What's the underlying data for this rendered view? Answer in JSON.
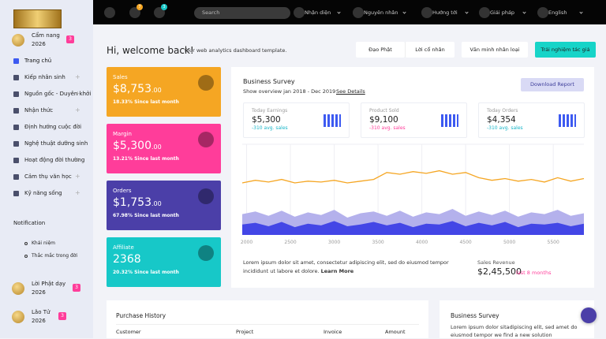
{
  "sidebar": {
    "profile": {
      "title": "Cẩm nang",
      "year": "2026",
      "badge": "3"
    },
    "menu": [
      "Trang chủ",
      "Kiếp nhân sinh",
      "Nguồn gốc - Duyên khởi",
      "Nhận thức",
      "Định hướng cuộc đời",
      "Nghệ thuật dưỡng sinh",
      "Hoạt động đời thường",
      "Cảm thụ văn học",
      "Kỹ năng sống"
    ],
    "notification_title": "Notification",
    "notifications": [
      "Khái niệm",
      "Thắc mắc trong đời"
    ],
    "posts": [
      {
        "title": "Lời Phật dạy",
        "year": "2026",
        "badge": "3"
      },
      {
        "title": "Lão Tử",
        "year": "2026",
        "badge": "3"
      }
    ]
  },
  "topbar": {
    "badges": [
      "7",
      "3"
    ],
    "search_placeholder": "Search",
    "menu": [
      "Nhận diện",
      "Nguyên nhân",
      "Hướng tới",
      "Giải pháp",
      "English"
    ]
  },
  "header": {
    "title": "Hi, welcome back!",
    "subtitle": "Your web analytics dashboard template.",
    "buttons": [
      "Đạo Phật",
      "Lời cổ nhân",
      "Văn minh nhân loại",
      "Trải nghiệm tác giả"
    ]
  },
  "cards": [
    {
      "label": "Sales",
      "value": "$8,753",
      "cents": ".00",
      "change": "18.33% Since last month"
    },
    {
      "label": "Margin",
      "value": "$5,300",
      "cents": ".00",
      "change": "13.21% Since last month"
    },
    {
      "label": "Orders",
      "value": "$1,753",
      "cents": ".00",
      "change": "67.98% Since last month"
    },
    {
      "label": "Affiliate",
      "value": "2368",
      "change": "20.32% Since last month"
    }
  ],
  "survey": {
    "title": "Business Survey",
    "subtitle": "Show overview jan 2018 - Dec 2019",
    "link": "See Details",
    "button": "Download Report",
    "stats": [
      {
        "label": "Today Earnings",
        "value": "$5,300",
        "note": "-310 avg. sales"
      },
      {
        "label": "Product Sold",
        "value": "$9,100",
        "note": "-310 avg. sales"
      },
      {
        "label": "Today Orders",
        "value": "$4,354",
        "note": "-310 avg. sales"
      }
    ],
    "chart": {
      "type": "line",
      "x": [
        1950,
        2100,
        2250,
        2400,
        2550,
        2700,
        2850,
        3000,
        3150,
        3300,
        3450,
        3600,
        3750,
        3900,
        4050,
        4200,
        4350,
        4500,
        4650,
        4800,
        4950,
        5100,
        5250,
        5400,
        5550,
        5700,
        5850
      ],
      "xlim": [
        1950,
        5850
      ],
      "xticks": [
        2000,
        2500,
        3000,
        3500,
        4000,
        4500,
        5000,
        5500
      ],
      "ylim": [
        0,
        100
      ],
      "grid": true,
      "series": [
        {
          "type": "area",
          "color": "#b4b1ec",
          "values": [
            24,
            27,
            22,
            28,
            21,
            26,
            23,
            29,
            20,
            25,
            27,
            22,
            28,
            21,
            26,
            24,
            30,
            22,
            27,
            23,
            28,
            21,
            26,
            24,
            29,
            22,
            25
          ]
        },
        {
          "type": "area",
          "color": "#4346e6",
          "values": [
            12,
            14,
            10,
            15,
            9,
            13,
            11,
            16,
            10,
            12,
            15,
            11,
            14,
            9,
            13,
            12,
            16,
            10,
            14,
            11,
            15,
            9,
            13,
            12,
            14,
            10,
            13
          ]
        },
        {
          "type": "line",
          "color": "#f5a623",
          "values": [
            60,
            63,
            61,
            64,
            60,
            62,
            61,
            63,
            60,
            62,
            64,
            72,
            70,
            73,
            71,
            74,
            70,
            72,
            66,
            63,
            65,
            62,
            64,
            61,
            66,
            62,
            65
          ]
        }
      ]
    },
    "description": "Lorem ipsum dolor sit amet, consectetur adipiscing elit, sed do eiusmod tempor incididunt ut labore et dolore.",
    "learn_more": "Learn More",
    "revenue_label": "Sales Revenue",
    "revenue_value": "$2,45,500",
    "revenue_period": "last 8 months"
  },
  "purchase": {
    "title": "Purchase History",
    "columns": [
      "Customer",
      "Project",
      "Invoice",
      "Amount"
    ]
  },
  "survey2": {
    "title": "Business Survey",
    "text": "Lorem ipsum dolor sitadipiscing elit, sed amet do eiusmod tempor we find a new solution"
  }
}
